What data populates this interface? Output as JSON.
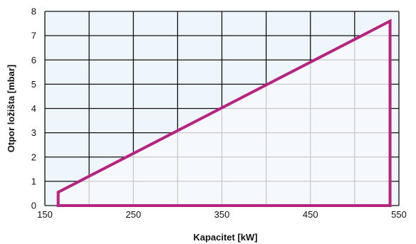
{
  "chart_data": {
    "type": "area",
    "xlabel": "Kapacitet [kW]",
    "ylabel": "Otpor ložišta  [mbar]",
    "xlim": [
      150,
      550
    ],
    "ylim": [
      0,
      8
    ],
    "x_ticks": [
      "150",
      "250",
      "350",
      "450",
      "550"
    ],
    "y_ticks": [
      "0",
      "1",
      "2",
      "3",
      "4",
      "5",
      "6",
      "7",
      "8"
    ],
    "grid": true,
    "series": [
      {
        "x": [
          165,
          165,
          540,
          540
        ],
        "y": [
          0,
          0.55,
          7.6,
          0
        ]
      }
    ],
    "colors": {
      "outline": "#b5247e",
      "fill": "#f5f9fd",
      "outer_cell": "#eef5fb",
      "grid_outer": "#111111",
      "grid_inner": "#c8c8c8"
    }
  }
}
